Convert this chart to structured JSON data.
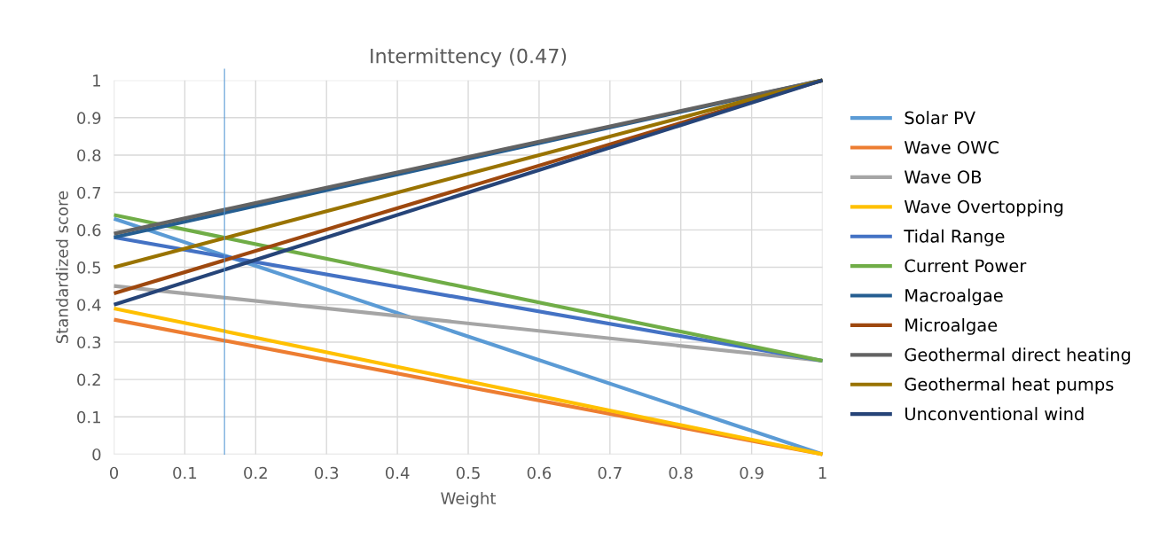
{
  "chart_data": {
    "type": "line",
    "title": "Intermittency (0.47)",
    "xlabel": "Weight",
    "ylabel": "Standardized score",
    "x": [
      0,
      1
    ],
    "series": [
      {
        "name": "Solar PV",
        "color": "#5b9bd5",
        "values": [
          0.63,
          0
        ]
      },
      {
        "name": "Wave OWC",
        "color": "#ed7d31",
        "values": [
          0.36,
          0
        ]
      },
      {
        "name": "Wave OB",
        "color": "#a5a5a5",
        "values": [
          0.45,
          0.25
        ]
      },
      {
        "name": "Wave Overtopping",
        "color": "#ffc000",
        "values": [
          0.39,
          0
        ]
      },
      {
        "name": "Tidal Range",
        "color": "#4472c4",
        "values": [
          0.58,
          0.25
        ]
      },
      {
        "name": "Current Power",
        "color": "#70ad47",
        "values": [
          0.64,
          0.25
        ]
      },
      {
        "name": "Macroalgae",
        "color": "#255e91",
        "values": [
          0.58,
          1
        ]
      },
      {
        "name": "Microalgae",
        "color": "#9e480e",
        "values": [
          0.43,
          1
        ]
      },
      {
        "name": "Geothermal direct heating",
        "color": "#636363",
        "values": [
          0.59,
          1
        ]
      },
      {
        "name": "Geothermal heat pumps",
        "color": "#997300",
        "values": [
          0.5,
          1
        ]
      },
      {
        "name": "Unconventional wind",
        "color": "#264478",
        "values": [
          0.4,
          1
        ]
      }
    ],
    "xlim": [
      0,
      1
    ],
    "xticks": [
      0,
      0.1,
      0.2,
      0.3,
      0.4,
      0.5,
      0.6,
      0.7,
      0.8,
      0.9,
      1
    ],
    "ylim": [
      0,
      1
    ],
    "yticks": [
      0,
      0.1,
      0.2,
      0.3,
      0.4,
      0.5,
      0.6,
      0.7,
      0.8,
      0.9,
      1
    ],
    "ref_lines": [
      {
        "axis": "x",
        "value": 0.156,
        "label": null,
        "color": "#5b9bd5"
      }
    ],
    "grid": true,
    "legend": "right",
    "marker": "none",
    "line_style": "solid"
  }
}
